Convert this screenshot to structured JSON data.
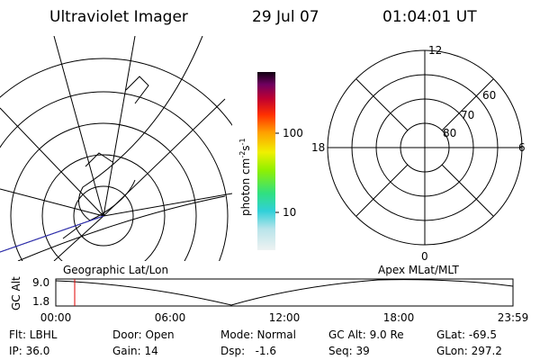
{
  "header": {
    "title": "Ultraviolet Imager",
    "date": "29 Jul 07",
    "time": "01:04:01 UT"
  },
  "colorbar": {
    "label": [
      "photon cm",
      "-2",
      "s",
      "-1"
    ],
    "ticks": [
      "100",
      "10"
    ]
  },
  "polar": {
    "mlt_labels": [
      "12",
      "18",
      "6",
      "0"
    ],
    "lat_labels": [
      "60",
      "70",
      "80"
    ]
  },
  "timeline": {
    "left_title": "Geographic Lat/Lon",
    "right_title": "Apex MLat/MLT",
    "y_label": "GC Alt",
    "y_ticks": [
      "9.0",
      "1.8"
    ],
    "x_ticks": [
      "00:00",
      "06:00",
      "12:00",
      "18:00",
      "23:59"
    ]
  },
  "footer": {
    "rows": [
      [
        "Flt: LBHL",
        "Door: Open",
        "Mode: Normal",
        "GC Alt: 9.0 Re",
        "GLat: -69.5"
      ],
      [
        "IP: 36.0",
        "Gain: 14",
        "Dsp:   -1.6",
        "Seq: 39",
        "GLon: 297.2"
      ]
    ]
  }
}
